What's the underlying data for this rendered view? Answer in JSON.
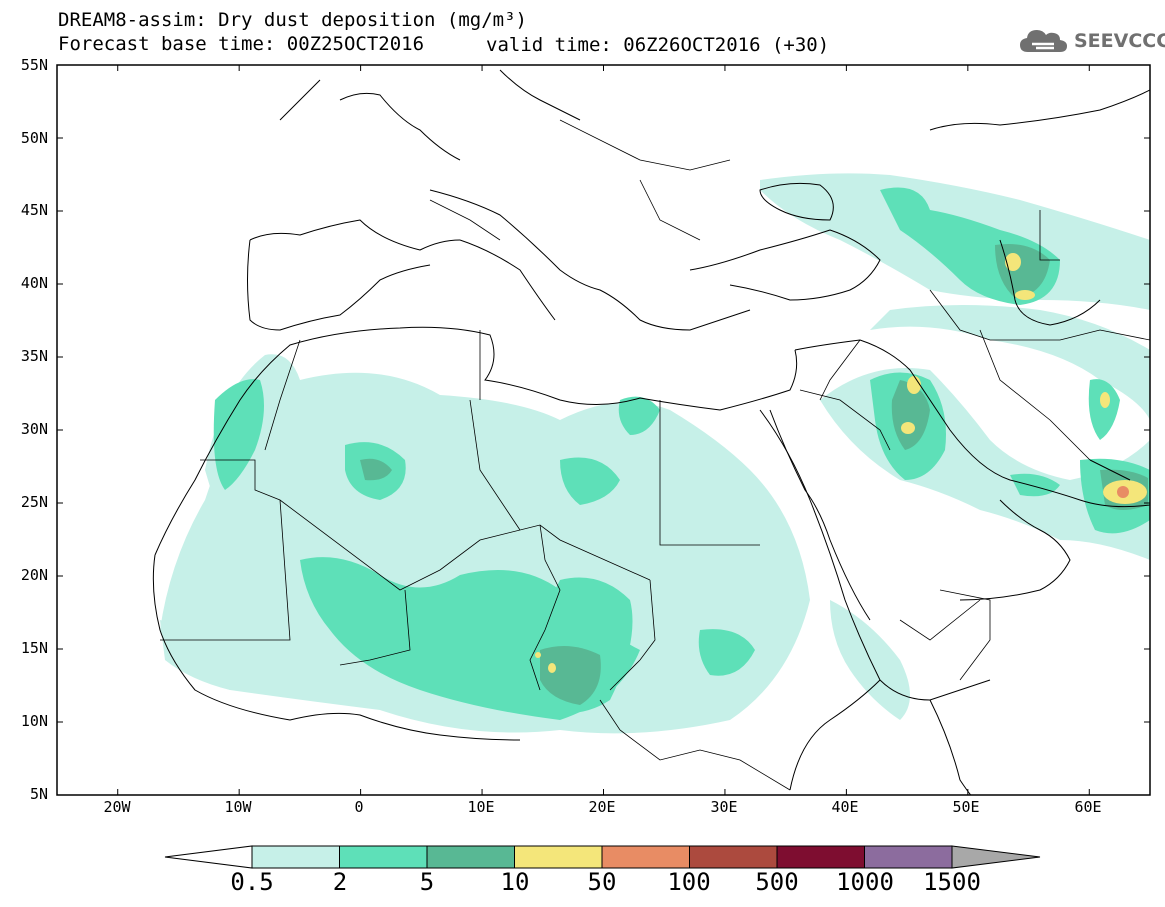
{
  "title": {
    "line1": "DREAM8-assim: Dry dust deposition (mg/m³)",
    "line2": "Forecast base time: 00Z25OCT2016",
    "valid_time": "valid time: 06Z26OCT2016 (+30)"
  },
  "logo": {
    "text": "SEEVCCC",
    "icon": "cloud-icon"
  },
  "map": {
    "lat_labels": [
      "55N",
      "50N",
      "45N",
      "40N",
      "35N",
      "30N",
      "25N",
      "20N",
      "15N",
      "10N",
      "5N"
    ],
    "lon_labels": [
      "20W",
      "10W",
      "0",
      "10E",
      "20E",
      "30E",
      "40E",
      "50E",
      "60E"
    ],
    "lat_range": [
      5,
      55
    ],
    "lon_range": [
      -25,
      65
    ]
  },
  "legend": {
    "levels": [
      "0.5",
      "2",
      "5",
      "10",
      "50",
      "100",
      "500",
      "1000",
      "1500"
    ],
    "colors": [
      "#c6f0e8",
      "#5ee0b8",
      "#58b894",
      "#f4e67a",
      "#e88c64",
      "#ac4a3e",
      "#7e0d30",
      "#8c6c9e",
      "#a8a8a8"
    ]
  }
}
